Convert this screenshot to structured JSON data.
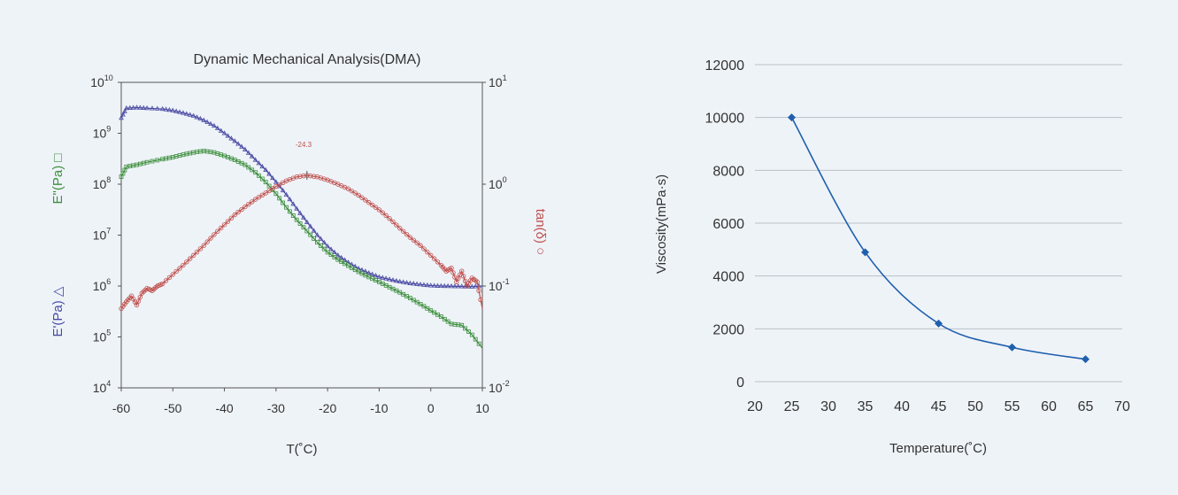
{
  "chart_data": [
    {
      "type": "line",
      "title": "Dynamic Mechanical Analysis(DMA)",
      "xlabel": "T(˚C)",
      "ylabel_left_top": "E\"(Pa) □",
      "ylabel_left_bottom": "E'(Pa) △",
      "ylabel_right": "tan(δ) ○",
      "xlim": [
        -60,
        10
      ],
      "x_ticks": [
        -60,
        -50,
        -40,
        -30,
        -20,
        -10,
        0,
        10
      ],
      "x_tick_labels": [
        "-60",
        "-50",
        "-40",
        "-30",
        "-20",
        "-10",
        "0",
        "10"
      ],
      "y_left_scale": "log",
      "y_left_exp_labels": [
        {
          "base": "10",
          "exp": "4",
          "value": 10000
        },
        {
          "base": "10",
          "exp": "5",
          "value": 100000
        },
        {
          "base": "10",
          "exp": "6",
          "value": 1000000
        },
        {
          "base": "10",
          "exp": "7",
          "value": 10000000
        },
        {
          "base": "10",
          "exp": "8",
          "value": 100000000
        },
        {
          "base": "10",
          "exp": "9",
          "value": 1000000000
        },
        {
          "base": "10",
          "exp": "10",
          "value": 10000000000
        }
      ],
      "y_right_scale": "log",
      "y_right_exp_labels": [
        {
          "base": "10",
          "exp": "-2",
          "value": 0.01
        },
        {
          "base": "10",
          "exp": "-1",
          "value": 0.1
        },
        {
          "base": "10",
          "exp": "0",
          "value": 1
        },
        {
          "base": "10",
          "exp": "1",
          "value": 10
        }
      ],
      "annotation": "-24.3",
      "grid": false,
      "series": [
        {
          "color": "#4a4aa3",
          "marker": "triangle",
          "axis": "left",
          "x": [
            -60,
            -59,
            -57,
            -55,
            -52,
            -50,
            -48,
            -46,
            -44,
            -42,
            -40,
            -38,
            -36,
            -34,
            -32,
            -30,
            -28,
            -26,
            -24,
            -22,
            -20,
            -18,
            -16,
            -14,
            -12,
            -10,
            -8,
            -6,
            -4,
            -2,
            0,
            2,
            4,
            6,
            8,
            10
          ],
          "y": [
            2000000000,
            3100000000,
            3200000000,
            3100000000,
            3000000000,
            2800000000,
            2500000000,
            2200000000,
            1800000000,
            1400000000,
            1000000000,
            700000000,
            480000000,
            300000000,
            190000000,
            110000000,
            62000000,
            33000000,
            18000000,
            10000000,
            6000000,
            4000000,
            2900000,
            2200000,
            1800000,
            1500000,
            1350000,
            1220000,
            1130000,
            1070000,
            1020000,
            1000000,
            990000,
            980000,
            970000,
            1000000
          ]
        },
        {
          "color": "#3c8e3c",
          "marker": "square",
          "axis": "left",
          "x": [
            -60,
            -59,
            -57,
            -55,
            -52,
            -50,
            -48,
            -46,
            -44,
            -42,
            -40,
            -38,
            -36,
            -34,
            -32,
            -30,
            -28,
            -26,
            -24,
            -22,
            -20,
            -18,
            -16,
            -14,
            -12,
            -10,
            -8,
            -6,
            -4,
            -2,
            0,
            2,
            4,
            6,
            8,
            10
          ],
          "y": [
            140000000,
            220000000,
            240000000,
            270000000,
            310000000,
            340000000,
            380000000,
            420000000,
            450000000,
            420000000,
            360000000,
            300000000,
            240000000,
            170000000,
            110000000,
            65000000,
            35000000,
            20000000,
            12000000,
            7200000,
            4600000,
            3300000,
            2500000,
            1900000,
            1500000,
            1200000,
            950000,
            750000,
            580000,
            440000,
            330000,
            250000,
            180000,
            170000,
            110000,
            60000
          ]
        },
        {
          "color": "#c0504d",
          "marker": "circle",
          "axis": "right",
          "x": [
            -60,
            -59,
            -58,
            -57,
            -56,
            -55,
            -54,
            -53,
            -52,
            -50,
            -48,
            -46,
            -44,
            -42,
            -40,
            -38,
            -36,
            -34,
            -32,
            -30,
            -28,
            -26,
            -24,
            -22,
            -20,
            -18,
            -16,
            -14,
            -12,
            -10,
            -8,
            -6,
            -4,
            -2,
            0,
            2,
            3,
            4,
            5,
            6,
            7,
            8,
            9,
            10
          ],
          "y": [
            0.06,
            0.07,
            0.08,
            0.065,
            0.085,
            0.095,
            0.09,
            0.1,
            0.105,
            0.13,
            0.16,
            0.2,
            0.25,
            0.32,
            0.4,
            0.5,
            0.6,
            0.71,
            0.82,
            0.95,
            1.08,
            1.18,
            1.22,
            1.18,
            1.1,
            1.0,
            0.9,
            0.78,
            0.66,
            0.56,
            0.46,
            0.37,
            0.3,
            0.25,
            0.2,
            0.16,
            0.14,
            0.15,
            0.11,
            0.14,
            0.1,
            0.12,
            0.11,
            0.06
          ]
        }
      ]
    },
    {
      "type": "line",
      "title": "",
      "xlabel": "Temperature(˚C)",
      "ylabel": "Viscosity(mPa·s)",
      "xlim": [
        20,
        70
      ],
      "ylim": [
        0,
        12000
      ],
      "x_ticks": [
        20,
        25,
        30,
        35,
        40,
        45,
        50,
        55,
        60,
        65,
        70
      ],
      "x_tick_labels": [
        "20",
        "25",
        "30",
        "35",
        "40",
        "45",
        "50",
        "55",
        "60",
        "65",
        "70"
      ],
      "y_ticks": [
        0,
        2000,
        4000,
        6000,
        8000,
        10000,
        12000
      ],
      "y_tick_labels": [
        "0",
        "2000",
        "4000",
        "6000",
        "8000",
        "10000",
        "12000"
      ],
      "grid": true,
      "legend": "none",
      "series": [
        {
          "color": "#1f5fae",
          "marker": "diamond",
          "x": [
            25,
            35,
            45,
            55,
            65
          ],
          "y": [
            10000,
            4900,
            2200,
            1300,
            850
          ]
        }
      ]
    }
  ]
}
